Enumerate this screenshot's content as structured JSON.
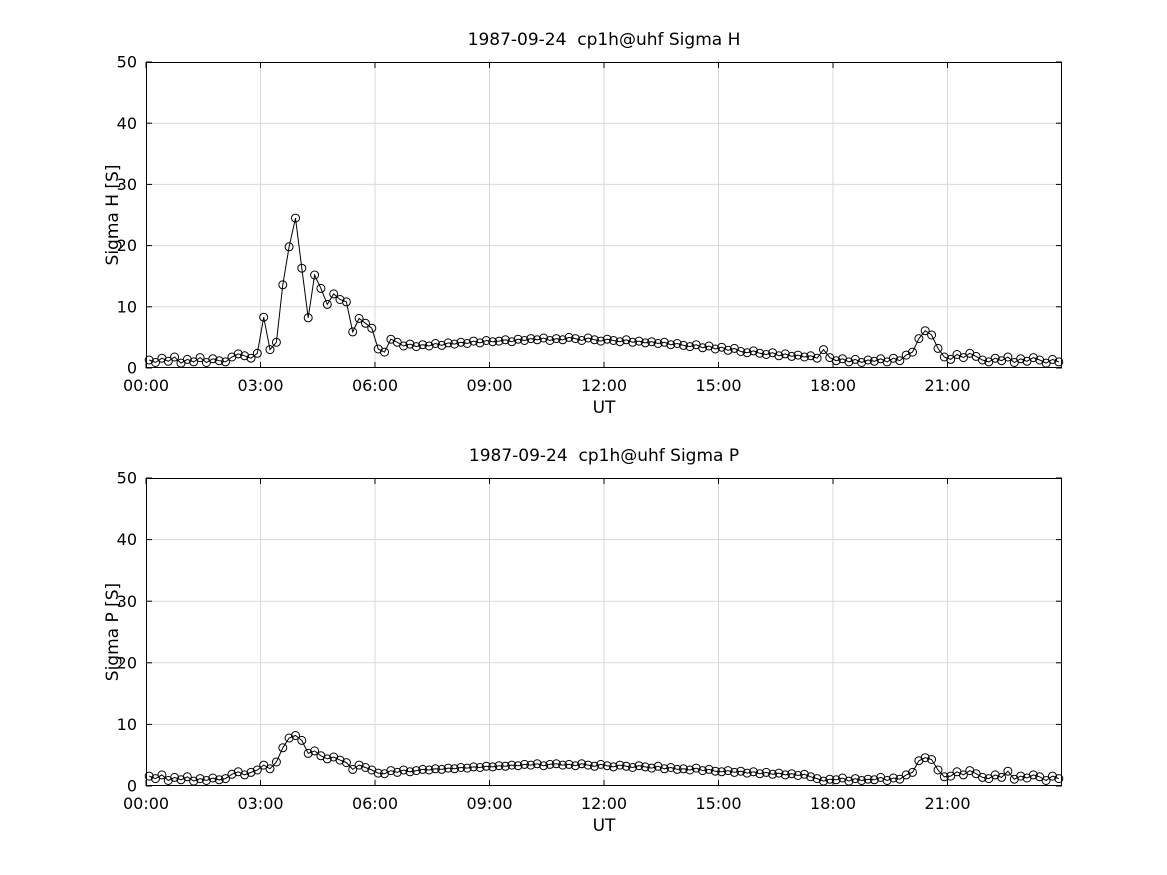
{
  "figure": {
    "background": "#ffffff",
    "axis_color": "#000000",
    "grid_color": "#d9d9d9",
    "marker_color": "#000000",
    "line_color": "#000000"
  },
  "chart_data": [
    {
      "type": "line",
      "series_name": "sigma-h",
      "title": "1987-09-24  cp1h@uhf Sigma H",
      "xlabel": "UT",
      "ylabel": "Sigma H [S]",
      "xlim": [
        0,
        24
      ],
      "ylim": [
        0,
        50
      ],
      "xticks": [
        0,
        3,
        6,
        9,
        12,
        15,
        18,
        21
      ],
      "xtick_labels": [
        "00:00",
        "03:00",
        "06:00",
        "09:00",
        "12:00",
        "15:00",
        "18:00",
        "21:00"
      ],
      "yticks": [
        0,
        10,
        20,
        30,
        40,
        50
      ],
      "ytick_labels": [
        "0",
        "10",
        "20",
        "30",
        "40",
        "50"
      ],
      "grid": true,
      "legend": "none",
      "marker": "circle",
      "x_start_minutes": 5,
      "x_step_minutes": 10,
      "values": [
        1.3,
        0.9,
        1.6,
        1.1,
        1.8,
        0.8,
        1.4,
        1.0,
        1.7,
        0.9,
        1.5,
        1.2,
        1.0,
        1.8,
        2.3,
        2.0,
        1.6,
        2.4,
        8.3,
        3.0,
        4.2,
        13.6,
        19.8,
        24.5,
        16.3,
        8.2,
        15.2,
        13.0,
        10.4,
        12.1,
        11.2,
        10.8,
        5.9,
        8.1,
        7.3,
        6.5,
        3.1,
        2.6,
        4.7,
        4.2,
        3.6,
        3.9,
        3.5,
        3.8,
        3.6,
        4.0,
        3.7,
        4.1,
        3.9,
        4.2,
        4.0,
        4.4,
        4.1,
        4.5,
        4.3,
        4.4,
        4.6,
        4.3,
        4.7,
        4.5,
        4.8,
        4.6,
        4.9,
        4.5,
        4.8,
        4.6,
        5.0,
        4.8,
        4.5,
        4.9,
        4.6,
        4.4,
        4.7,
        4.5,
        4.3,
        4.6,
        4.2,
        4.4,
        4.1,
        4.3,
        4.0,
        4.2,
        3.8,
        4.0,
        3.7,
        3.5,
        3.8,
        3.3,
        3.6,
        3.1,
        3.4,
        2.9,
        3.2,
        2.7,
        2.5,
        2.8,
        2.4,
        2.2,
        2.5,
        2.0,
        2.3,
        1.9,
        2.1,
        1.8,
        2.0,
        1.6,
        3.0,
        1.7,
        1.2,
        1.5,
        1.0,
        1.4,
        0.9,
        1.3,
        1.1,
        1.5,
        1.0,
        1.6,
        1.2,
        2.1,
        2.6,
        4.8,
        6.1,
        5.4,
        3.2,
        1.8,
        1.4,
        2.2,
        1.7,
        2.4,
        1.9,
        1.3,
        1.0,
        1.6,
        1.2,
        1.8,
        0.9,
        1.5,
        1.1,
        1.7,
        1.3,
        0.8,
        1.4,
        1.0
      ]
    },
    {
      "type": "line",
      "series_name": "sigma-p",
      "title": "1987-09-24  cp1h@uhf Sigma P",
      "xlabel": "UT",
      "ylabel": "Sigma P [S]",
      "xlim": [
        0,
        24
      ],
      "ylim": [
        0,
        50
      ],
      "xticks": [
        0,
        3,
        6,
        9,
        12,
        15,
        18,
        21
      ],
      "xtick_labels": [
        "00:00",
        "03:00",
        "06:00",
        "09:00",
        "12:00",
        "15:00",
        "18:00",
        "21:00"
      ],
      "yticks": [
        0,
        10,
        20,
        30,
        40,
        50
      ],
      "ytick_labels": [
        "0",
        "10",
        "20",
        "30",
        "40",
        "50"
      ],
      "grid": true,
      "legend": "none",
      "marker": "circle",
      "x_start_minutes": 5,
      "x_step_minutes": 10,
      "values": [
        1.6,
        1.2,
        1.8,
        0.9,
        1.4,
        1.0,
        1.5,
        0.8,
        1.2,
        0.9,
        1.3,
        1.0,
        1.2,
        1.9,
        2.3,
        1.8,
        2.2,
        2.6,
        3.4,
        2.8,
        3.9,
        6.2,
        7.8,
        8.2,
        7.4,
        5.3,
        5.7,
        4.9,
        4.4,
        4.7,
        4.2,
        3.8,
        2.7,
        3.4,
        3.0,
        2.6,
        2.1,
        2.0,
        2.5,
        2.2,
        2.6,
        2.3,
        2.5,
        2.7,
        2.6,
        2.8,
        2.7,
        2.9,
        2.8,
        3.0,
        2.9,
        3.1,
        3.0,
        3.2,
        3.1,
        3.3,
        3.2,
        3.4,
        3.3,
        3.5,
        3.4,
        3.6,
        3.3,
        3.5,
        3.6,
        3.4,
        3.5,
        3.3,
        3.6,
        3.4,
        3.2,
        3.5,
        3.3,
        3.1,
        3.4,
        3.2,
        3.0,
        3.3,
        3.1,
        2.9,
        3.2,
        2.8,
        3.0,
        2.7,
        2.8,
        2.6,
        2.9,
        2.5,
        2.7,
        2.4,
        2.3,
        2.5,
        2.2,
        2.4,
        2.1,
        2.3,
        2.0,
        2.2,
        1.9,
        2.1,
        1.8,
        2.0,
        1.7,
        1.9,
        1.5,
        1.2,
        0.8,
        1.1,
        1.0,
        1.3,
        0.8,
        1.2,
        0.9,
        1.1,
        1.0,
        1.4,
        0.9,
        1.3,
        1.1,
        1.8,
        2.2,
        4.1,
        4.6,
        4.3,
        2.6,
        1.5,
        1.6,
        2.3,
        1.8,
        2.5,
        2.0,
        1.4,
        1.2,
        1.8,
        1.4,
        2.4,
        1.1,
        1.6,
        1.3,
        1.8,
        1.5,
        0.9,
        1.6,
        1.2
      ]
    }
  ]
}
